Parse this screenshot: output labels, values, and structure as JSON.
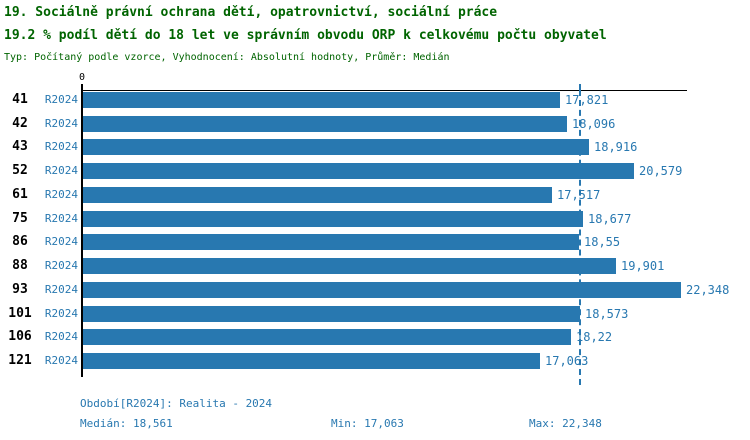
{
  "header": {
    "title_line1": "19. Sociálně právní ochrana dětí, opatrovnictví, sociální práce",
    "title_line2": "19.2 % podíl dětí do 18 let ve správním obvodu ORP k celkovému počtu obyvatel",
    "meta": "Typ: Počítaný podle vzorce, Vyhodnocení: Absolutní hodnoty, Průměr: Medián"
  },
  "chart_data": {
    "type": "bar",
    "orientation": "horizontal",
    "title": "19.2 % podíl dětí do 18 let ve správním obvodu ORP k celkovému počtu obyvatel",
    "categories": [
      "41",
      "42",
      "43",
      "52",
      "61",
      "75",
      "86",
      "88",
      "93",
      "101",
      "106",
      "121"
    ],
    "series": [
      {
        "name": "R2024",
        "values": [
          17.821,
          18.096,
          18.916,
          20.579,
          17.517,
          18.677,
          18.55,
          19.901,
          22.348,
          18.573,
          18.22,
          17.063
        ],
        "value_labels": [
          "17,821",
          "18,096",
          "18,916",
          "20,579",
          "17,517",
          "18,677",
          "18,55",
          "19,901",
          "22,348",
          "18,573",
          "18,22",
          "17,063"
        ]
      }
    ],
    "xlabel": "",
    "ylabel": "",
    "xlim": [
      0,
      22.6
    ],
    "origin_tick_label": "0",
    "median_value": 18.561,
    "grid": false,
    "legend_position": "none",
    "bar_color": "#2878b0",
    "median_line_color": "#2878b0",
    "axis_color": "#000000"
  },
  "footer": {
    "period": "Období[R2024]: Realita - 2024",
    "median": "Medián: 18,561",
    "min": "Min: 17,063",
    "max": "Max: 22,348"
  },
  "colors": {
    "title_green": "#006400",
    "accent_blue": "#2878b0",
    "background": "#ffffff"
  }
}
